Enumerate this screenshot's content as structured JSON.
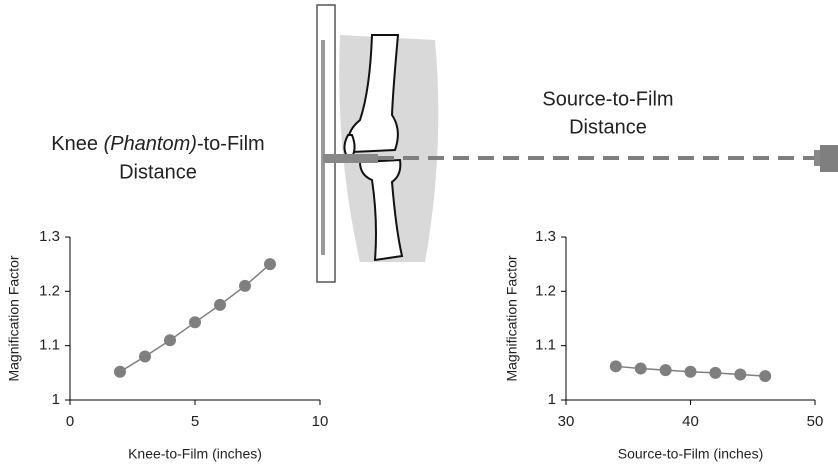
{
  "diagram": {
    "knee_label": {
      "line1": [
        "Knee",
        "(Phantom)",
        "-to-Film"
      ],
      "line2": "Distance"
    },
    "source_label": {
      "line1": "Source-to-Film",
      "line2": "Distance"
    }
  },
  "chart_data": [
    {
      "type": "line",
      "x_label": "Knee-to-Film (inches)",
      "y_label": "Magnification Factor",
      "series": [
        {
          "color": "#7f7f7f",
          "x": [
            2,
            3,
            4,
            5,
            6,
            7,
            8
          ],
          "values": [
            1.052,
            1.08,
            1.11,
            1.143,
            1.175,
            1.21,
            1.25
          ]
        }
      ],
      "xlim": [
        0,
        10
      ],
      "xticks": [
        0,
        5,
        10
      ],
      "ylim": [
        1,
        1.3
      ],
      "yticks": [
        1,
        1.1,
        1.2,
        1.3
      ],
      "grid": false
    },
    {
      "type": "line",
      "x_label": "Source-to-Film (inches)",
      "y_label": "Magnification Factor",
      "series": [
        {
          "color": "#7f7f7f",
          "x": [
            34,
            36,
            38,
            40,
            42,
            44,
            46
          ],
          "values": [
            1.062,
            1.058,
            1.055,
            1.052,
            1.05,
            1.047,
            1.044
          ]
        }
      ],
      "xlim": [
        30,
        50
      ],
      "xticks": [
        30,
        40,
        50
      ],
      "ylim": [
        1,
        1.3
      ],
      "yticks": [
        1,
        1.1,
        1.2,
        1.3
      ],
      "grid": false
    }
  ]
}
